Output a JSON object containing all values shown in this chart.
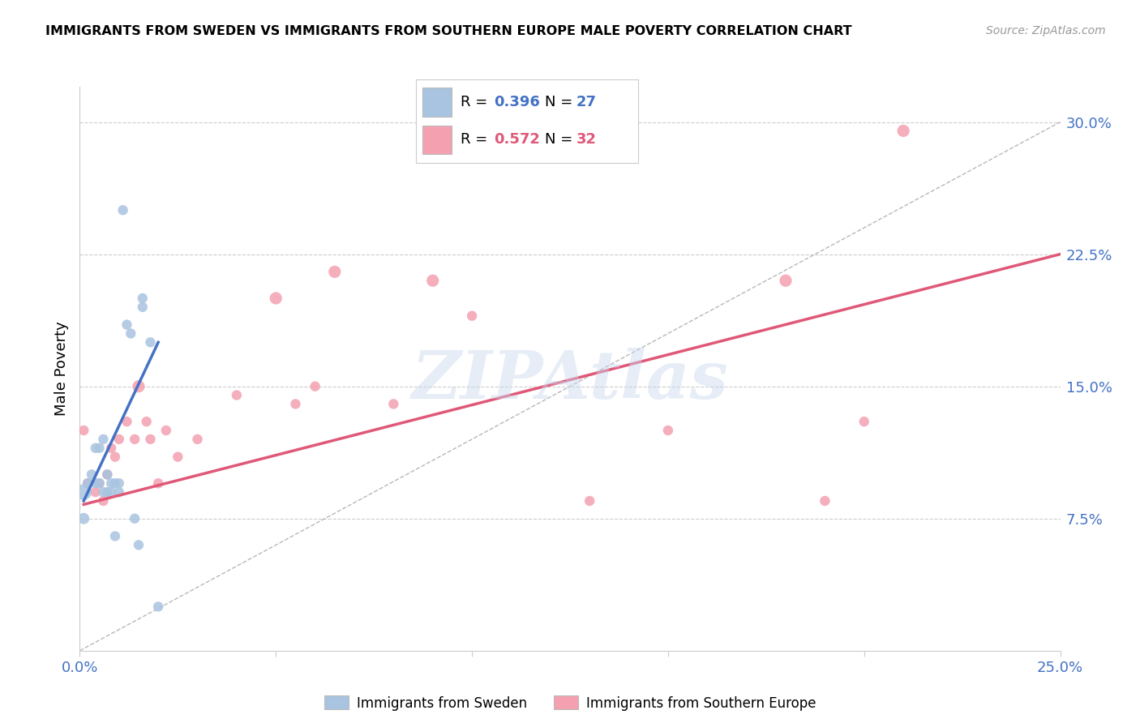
{
  "title": "IMMIGRANTS FROM SWEDEN VS IMMIGRANTS FROM SOUTHERN EUROPE MALE POVERTY CORRELATION CHART",
  "source": "Source: ZipAtlas.com",
  "ylabel": "Male Poverty",
  "xlim": [
    0.0,
    0.25
  ],
  "ylim": [
    0.0,
    0.32
  ],
  "xtick_positions": [
    0.0,
    0.05,
    0.1,
    0.15,
    0.2,
    0.25
  ],
  "xticklabels": [
    "0.0%",
    "",
    "",
    "",
    "",
    "25.0%"
  ],
  "ytick_positions": [
    0.075,
    0.15,
    0.225,
    0.3
  ],
  "ytick_labels": [
    "7.5%",
    "15.0%",
    "22.5%",
    "30.0%"
  ],
  "legend1_r_label": "R = ",
  "legend1_r_val": "0.396",
  "legend1_n_label": "N = ",
  "legend1_n_val": "27",
  "legend2_r_label": "R = ",
  "legend2_r_val": "0.572",
  "legend2_n_label": "N = ",
  "legend2_n_val": "32",
  "legend_label1": "Immigrants from Sweden",
  "legend_label2": "Immigrants from Southern Europe",
  "sweden_color": "#a8c4e0",
  "southern_color": "#f4a0b0",
  "sweden_line_color": "#4472c4",
  "southern_line_color": "#e05878",
  "diagonal_color": "#b0b0b0",
  "watermark": "ZIPAtlas",
  "blue_tick_color": "#4472c4",
  "sweden_x": [
    0.001,
    0.001,
    0.002,
    0.003,
    0.004,
    0.004,
    0.005,
    0.005,
    0.006,
    0.006,
    0.007,
    0.007,
    0.008,
    0.008,
    0.009,
    0.009,
    0.01,
    0.01,
    0.011,
    0.012,
    0.013,
    0.014,
    0.015,
    0.016,
    0.016,
    0.018,
    0.02
  ],
  "sweden_y": [
    0.09,
    0.075,
    0.095,
    0.1,
    0.095,
    0.115,
    0.095,
    0.115,
    0.12,
    0.09,
    0.1,
    0.09,
    0.095,
    0.09,
    0.095,
    0.065,
    0.09,
    0.095,
    0.25,
    0.185,
    0.18,
    0.075,
    0.06,
    0.2,
    0.195,
    0.175,
    0.025
  ],
  "sweden_sizes": [
    200,
    100,
    80,
    80,
    80,
    80,
    80,
    80,
    80,
    80,
    80,
    80,
    80,
    80,
    80,
    80,
    80,
    80,
    80,
    80,
    80,
    80,
    80,
    80,
    80,
    80,
    80
  ],
  "southern_x": [
    0.001,
    0.002,
    0.004,
    0.005,
    0.006,
    0.007,
    0.008,
    0.009,
    0.01,
    0.012,
    0.014,
    0.015,
    0.017,
    0.018,
    0.02,
    0.022,
    0.025,
    0.03,
    0.04,
    0.05,
    0.055,
    0.06,
    0.065,
    0.08,
    0.09,
    0.1,
    0.13,
    0.15,
    0.18,
    0.19,
    0.2,
    0.21
  ],
  "southern_y": [
    0.125,
    0.095,
    0.09,
    0.095,
    0.085,
    0.1,
    0.115,
    0.11,
    0.12,
    0.13,
    0.12,
    0.15,
    0.13,
    0.12,
    0.095,
    0.125,
    0.11,
    0.12,
    0.145,
    0.2,
    0.14,
    0.15,
    0.215,
    0.14,
    0.21,
    0.19,
    0.085,
    0.125,
    0.21,
    0.085,
    0.13,
    0.295
  ],
  "southern_sizes": [
    80,
    80,
    80,
    80,
    80,
    80,
    80,
    80,
    80,
    80,
    80,
    120,
    80,
    80,
    80,
    80,
    80,
    80,
    80,
    120,
    80,
    80,
    120,
    80,
    120,
    80,
    80,
    80,
    120,
    80,
    80,
    120
  ],
  "sweden_line_x1": 0.001,
  "sweden_line_x2": 0.02,
  "sweden_line_y1": 0.085,
  "sweden_line_y2": 0.175,
  "southern_line_x1": 0.001,
  "southern_line_x2": 0.25,
  "southern_line_y1": 0.083,
  "southern_line_y2": 0.225
}
